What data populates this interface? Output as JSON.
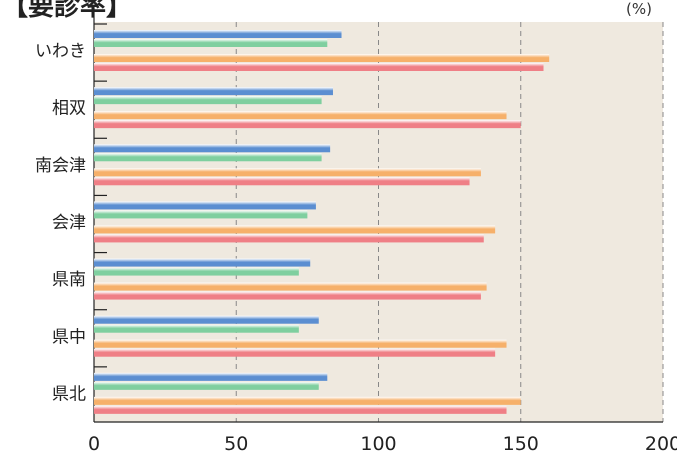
{
  "title": "【要診率】",
  "unit_label": "(%)",
  "chart_data": {
    "type": "bar",
    "orientation": "horizontal",
    "title": "【要診率】",
    "unit": "(%)",
    "xlim": [
      0,
      200
    ],
    "xticks": [
      0,
      50,
      100,
      150,
      200
    ],
    "grid": "vertical-dashed",
    "categories": [
      "いわき",
      "相双",
      "南会津",
      "会津",
      "県南",
      "県中",
      "県北"
    ],
    "series": [
      {
        "color": "#5b8ed1",
        "values": [
          87,
          84,
          83,
          78,
          76,
          79,
          82
        ]
      },
      {
        "color": "#7fcf9f",
        "values": [
          82,
          80,
          80,
          75,
          72,
          72,
          79
        ]
      },
      {
        "color": "#f6b06a",
        "values": [
          160,
          145,
          136,
          141,
          138,
          145,
          150
        ]
      },
      {
        "color": "#ef7f86",
        "values": [
          158,
          150,
          132,
          137,
          136,
          141,
          145
        ]
      }
    ]
  }
}
